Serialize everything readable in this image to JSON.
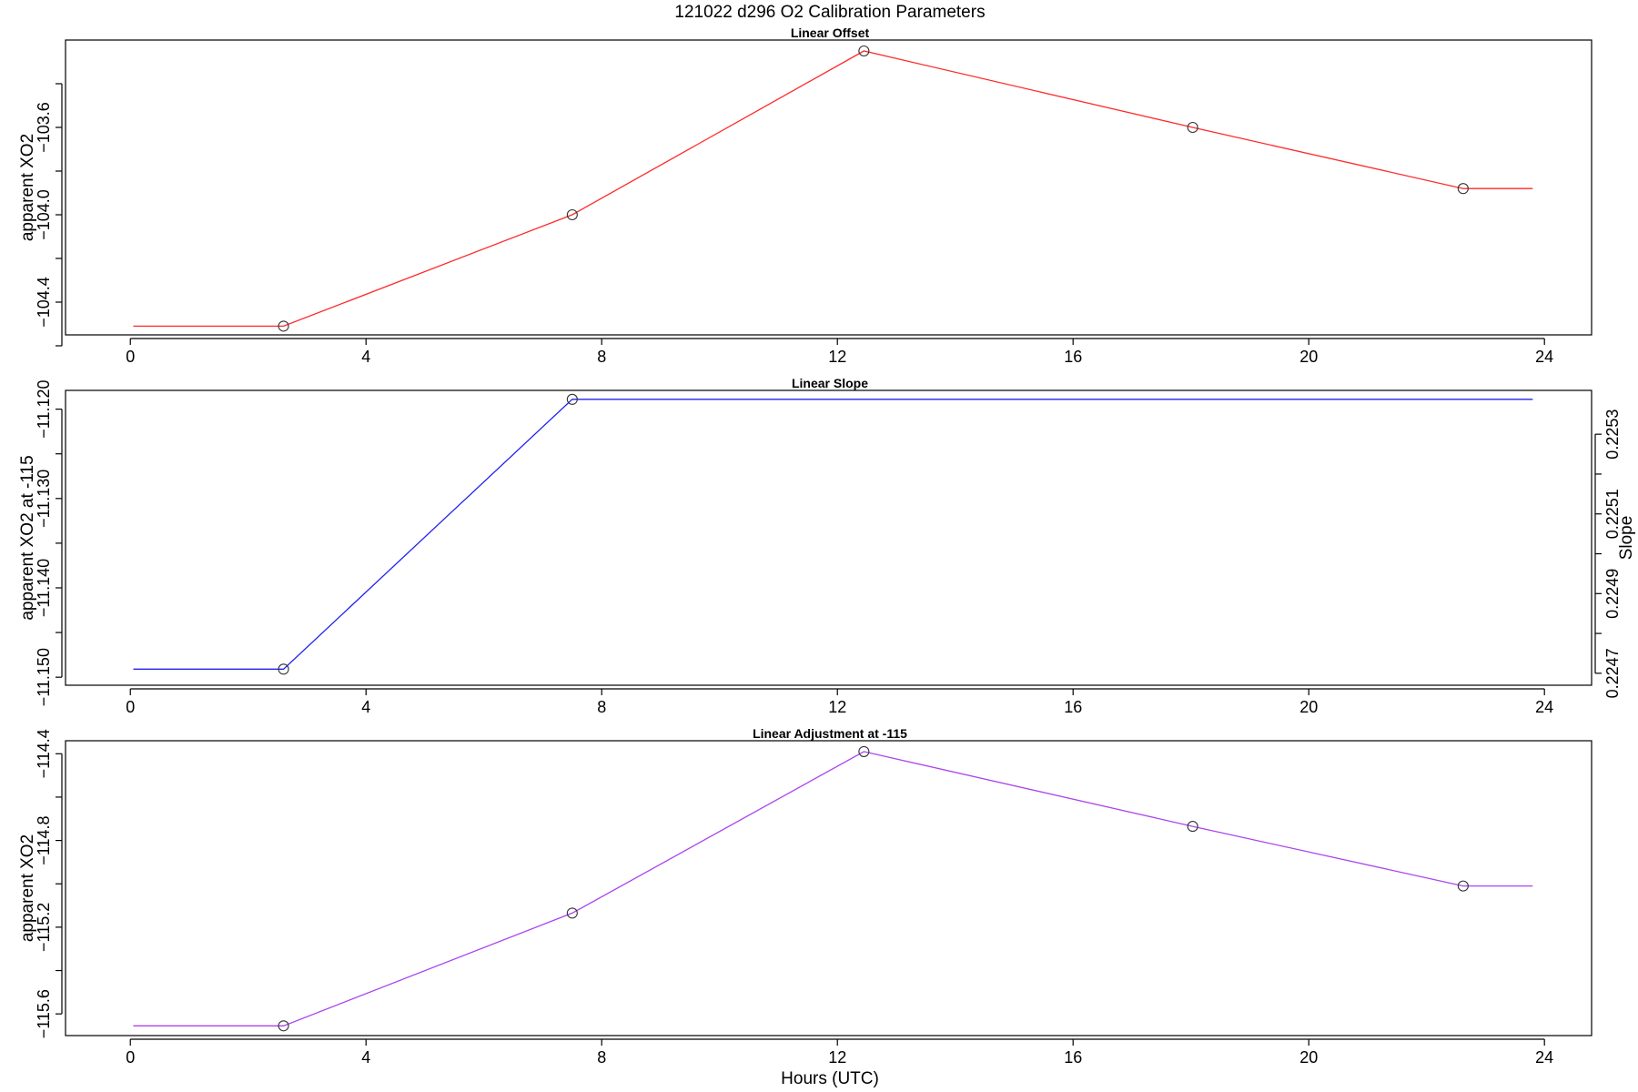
{
  "title": "121022   d296   O2 Calibration Parameters",
  "xlabel": "Hours (UTC)",
  "chart_data": [
    {
      "type": "line",
      "title": "Linear Offset",
      "xlabel": "",
      "ylabel": "apparent XO2",
      "xlim": [
        -1.1,
        24.8
      ],
      "ylim": [
        -104.55,
        -103.2
      ],
      "x_ticks": [
        0,
        4,
        8,
        12,
        16,
        20,
        24
      ],
      "y_ticks": [
        -104.4,
        -104.0,
        -103.6
      ],
      "y_minor_ticks": [
        -104.6,
        -104.2,
        -103.8,
        -103.4
      ],
      "color": "#ff2a2a",
      "line": {
        "x": [
          0.05,
          2.6,
          7.5,
          12.45,
          18.03,
          22.62,
          23.8
        ],
        "y": [
          -104.51,
          -104.51,
          -104.0,
          -103.25,
          -103.6,
          -103.88,
          -103.88
        ]
      },
      "points": {
        "x": [
          2.6,
          7.5,
          12.45,
          18.03,
          22.62
        ],
        "y": [
          -104.51,
          -104.0,
          -103.25,
          -103.6,
          -103.88
        ]
      }
    },
    {
      "type": "line",
      "title": "Linear Slope",
      "xlabel": "",
      "ylabel": "apparent XO2 at -115",
      "y2label": "Slope",
      "xlim": [
        -1.1,
        24.8
      ],
      "ylim": [
        -11.1509,
        -11.1179
      ],
      "x_ticks": [
        0,
        4,
        8,
        12,
        16,
        20,
        24
      ],
      "y_ticks": [
        -11.15,
        -11.14,
        -11.13,
        -11.12
      ],
      "y_minor_ticks": [
        -11.145,
        -11.135,
        -11.125
      ],
      "y2_ticks": [
        0.2247,
        0.2249,
        0.2251,
        0.2253
      ],
      "y2_minor_ticks": [
        0.2248,
        0.225,
        0.2252
      ],
      "y2_lim": [
        0.22467,
        0.22541
      ],
      "color": "#2222ee",
      "line": {
        "x": [
          0.05,
          2.6,
          7.5,
          23.8
        ],
        "y": [
          -11.1491,
          -11.1491,
          -11.1189,
          -11.1189
        ]
      },
      "points": {
        "x": [
          2.6,
          7.5
        ],
        "y": [
          -11.1491,
          -11.1189
        ]
      }
    },
    {
      "type": "line",
      "title": "Linear Adjustment at -115",
      "xlabel": "Hours (UTC)",
      "ylabel": "apparent XO2",
      "xlim": [
        -1.1,
        24.8
      ],
      "ylim": [
        -115.7,
        -114.34
      ],
      "x_ticks": [
        0,
        4,
        8,
        12,
        16,
        20,
        24
      ],
      "y_ticks": [
        -115.6,
        -115.2,
        -114.8,
        -114.4
      ],
      "y_minor_ticks": [
        -115.4,
        -115.0,
        -114.6
      ],
      "color": "#aa44ee",
      "line": {
        "x": [
          0.05,
          2.6,
          7.5,
          12.45,
          18.03,
          22.62,
          23.8
        ],
        "y": [
          -115.655,
          -115.655,
          -115.135,
          -114.39,
          -114.735,
          -115.01,
          -115.01
        ]
      },
      "points": {
        "x": [
          2.6,
          7.5,
          12.45,
          18.03,
          22.62
        ],
        "y": [
          -115.655,
          -115.135,
          -114.39,
          -114.735,
          -115.01
        ]
      }
    }
  ]
}
